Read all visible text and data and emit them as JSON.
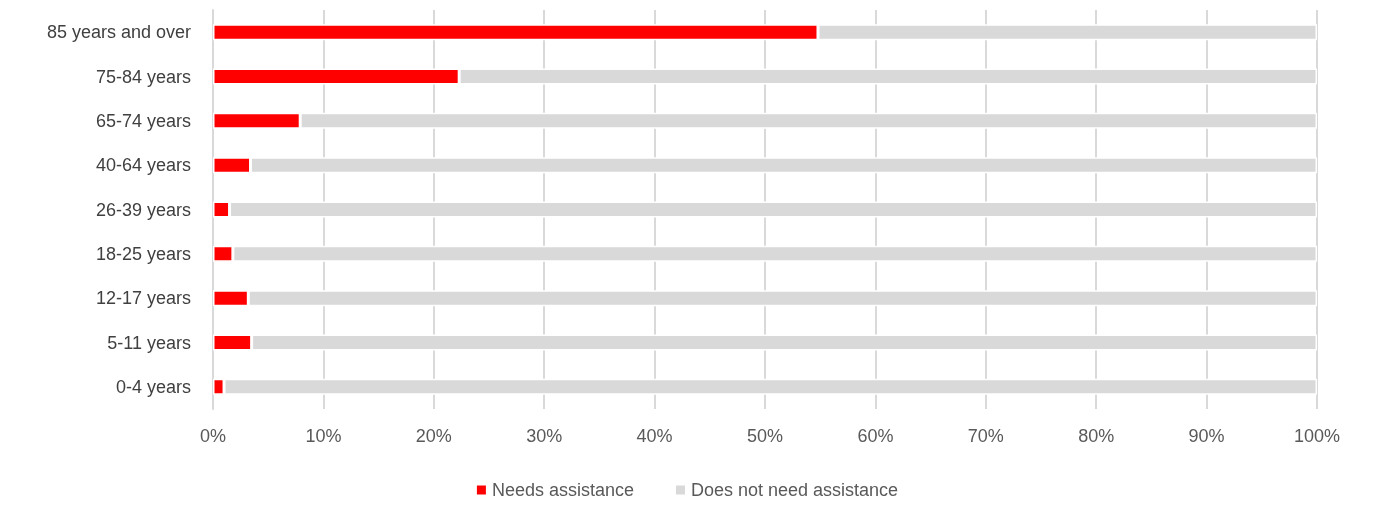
{
  "chart_data": {
    "type": "bar",
    "orientation": "horizontal",
    "stacked": true,
    "categories": [
      "85 years and over",
      "75-84 years",
      "65-74 years",
      "40-64 years",
      "26-39 years",
      "18-25 years",
      "12-17 years",
      "5-11 years",
      "0-4 years"
    ],
    "series": [
      {
        "name": "Needs assistance",
        "color": "#ff0000",
        "values": [
          54.8,
          22.3,
          7.9,
          3.4,
          1.5,
          1.8,
          3.2,
          3.5,
          1.0
        ]
      },
      {
        "name": "Does not need assistance",
        "color": "#d9d9d9",
        "values": [
          45.2,
          77.7,
          92.1,
          96.6,
          98.5,
          98.2,
          96.8,
          96.5,
          99.0
        ]
      }
    ],
    "xlim": [
      0,
      100
    ],
    "xticks": [
      {
        "value": 0,
        "label": "0%"
      },
      {
        "value": 10,
        "label": "10%"
      },
      {
        "value": 20,
        "label": "20%"
      },
      {
        "value": 30,
        "label": "30%"
      },
      {
        "value": 40,
        "label": "40%"
      },
      {
        "value": 50,
        "label": "50%"
      },
      {
        "value": 60,
        "label": "60%"
      },
      {
        "value": 70,
        "label": "70%"
      },
      {
        "value": 80,
        "label": "80%"
      },
      {
        "value": 90,
        "label": "90%"
      },
      {
        "value": 100,
        "label": "100%"
      }
    ],
    "grid": "x",
    "legend": "bottom"
  }
}
